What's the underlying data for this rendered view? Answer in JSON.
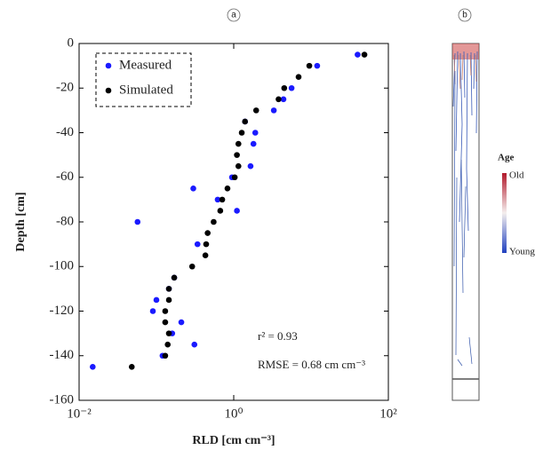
{
  "chart_data": {
    "type": "scatter",
    "panel_label": "a",
    "x_scale": "log",
    "xlabel": "RLD [cm cm⁻³]",
    "ylabel": "Depth [cm]",
    "xlim": [
      0.01,
      100
    ],
    "xticks": [
      {
        "value": 0.01,
        "label": "10⁻²"
      },
      {
        "value": 1,
        "label": "10⁰"
      },
      {
        "value": 100,
        "label": "10²"
      }
    ],
    "ylim": [
      -160,
      0
    ],
    "yticks": [
      0,
      -20,
      -40,
      -60,
      -80,
      -100,
      -120,
      -140,
      -160
    ],
    "legend": "top-left",
    "series": [
      {
        "name": "Measured",
        "color": "#1a1aff",
        "x": [
          40,
          12,
          5.6,
          4.4,
          3.3,
          1.4,
          1.9,
          1.8,
          1.65,
          0.95,
          0.3,
          0.62,
          1.1,
          0.057,
          0.34,
          0.17,
          0.145,
          0.1,
          0.09,
          0.21,
          0.16,
          0.31,
          0.12,
          0.015
        ],
        "y": [
          -5,
          -10,
          -20,
          -25,
          -30,
          -35,
          -40,
          -45,
          -55,
          -60,
          -65,
          -70,
          -75,
          -80,
          -90,
          -105,
          -110,
          -115,
          -120,
          -125,
          -130,
          -135,
          -140,
          -145
        ]
      },
      {
        "name": "Simulated",
        "color": "#000000",
        "x": [
          49,
          9.5,
          6.9,
          4.5,
          3.8,
          1.95,
          1.4,
          1.27,
          1.15,
          1.1,
          1.15,
          1.03,
          0.83,
          0.71,
          0.67,
          0.55,
          0.46,
          0.44,
          0.43,
          0.29,
          0.17,
          0.145,
          0.145,
          0.13,
          0.13,
          0.145,
          0.14,
          0.13,
          0.048
        ],
        "y": [
          -5,
          -10,
          -15,
          -20,
          -25,
          -30,
          -35,
          -40,
          -45,
          -50,
          -55,
          -60,
          -65,
          -70,
          -75,
          -80,
          -85,
          -90,
          -95,
          -100,
          -105,
          -110,
          -115,
          -120,
          -125,
          -130,
          -135,
          -140,
          -145
        ]
      }
    ],
    "annotations": [
      "r² = 0.93",
      "RMSE = 0.68 cm cm⁻³"
    ]
  },
  "panel_b": {
    "label": "b",
    "colorbar_title": "Age",
    "colorbar_top": "Old",
    "colorbar_bottom": "Young"
  }
}
